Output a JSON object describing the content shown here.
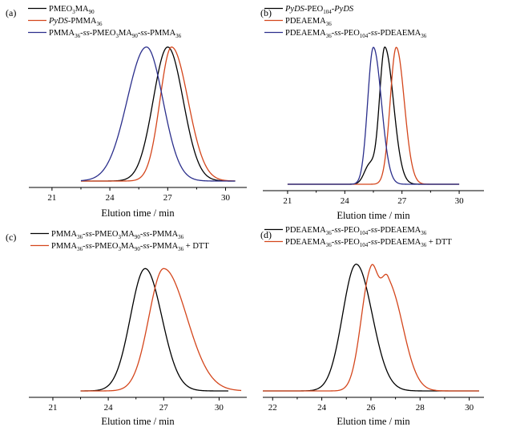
{
  "colors": {
    "black": "#000000",
    "red": "#d4461c",
    "blue": "#2b2f8c"
  },
  "chart_data": [
    {
      "panel": "(a)",
      "type": "line",
      "xlabel": "Elution time / min",
      "ylabel": "",
      "xticks": [
        21,
        24,
        27,
        30
      ],
      "xlim": [
        19.8,
        31.1
      ],
      "ylim": [
        0,
        1.1
      ],
      "legend": "top-left",
      "series": [
        {
          "name_parts": [
            [
              "PMEO",
              "n"
            ],
            [
              "3",
              "sub"
            ],
            [
              "MA",
              "n"
            ],
            [
              "90",
              "sub"
            ]
          ],
          "color": "black",
          "shape": "gauss",
          "peak": 27.0,
          "height": 1.0,
          "sigma_l": 0.75,
          "sigma_r": 0.8,
          "x_range": [
            22.5,
            30.5
          ],
          "baseline": 0.0
        },
        {
          "name_parts": [
            [
              "PyDS",
              "i"
            ],
            [
              "-PMMA",
              "n"
            ],
            [
              "36",
              "sub"
            ]
          ],
          "color": "red",
          "shape": "gauss",
          "peak": 27.2,
          "height": 1.0,
          "sigma_l": 0.6,
          "sigma_r": 0.85,
          "x_range": [
            22.5,
            30.5
          ],
          "baseline": 0.0
        },
        {
          "name_parts": [
            [
              "PMMA",
              "n"
            ],
            [
              "36",
              "sub"
            ],
            [
              "-",
              "n"
            ],
            [
              "ss",
              "i"
            ],
            [
              "-PMEO",
              "n"
            ],
            [
              "3",
              "sub"
            ],
            [
              "MA",
              "n"
            ],
            [
              "90",
              "sub"
            ],
            [
              "-",
              "n"
            ],
            [
              "ss",
              "i"
            ],
            [
              "-PMMA",
              "n"
            ],
            [
              "36",
              "sub"
            ]
          ],
          "color": "blue",
          "shape": "gauss",
          "peak": 25.9,
          "height": 1.0,
          "sigma_l": 1.0,
          "sigma_r": 0.85,
          "x_range": [
            22.5,
            30.5
          ],
          "baseline": 0.0
        }
      ]
    },
    {
      "panel": "(b)",
      "type": "line",
      "xlabel": "Elution time / min",
      "ylabel": "",
      "xticks": [
        21,
        24,
        27,
        30
      ],
      "xlim": [
        19.7,
        31.3
      ],
      "ylim": [
        0,
        1.1
      ],
      "legend": "top-left",
      "series": [
        {
          "name_parts": [
            [
              "PyDS",
              "i"
            ],
            [
              "-PEO",
              "n"
            ],
            [
              "104",
              "sub"
            ],
            [
              "-",
              "n"
            ],
            [
              "PyDS",
              "i"
            ]
          ],
          "color": "black",
          "shape": "gauss",
          "peak": 26.1,
          "height": 1.0,
          "sigma_l": 0.28,
          "sigma_r": 0.45,
          "shoulder": [
            25.3,
            0.14,
            0.28
          ],
          "x_range": [
            21.0,
            30.0
          ],
          "baseline": 0.0
        },
        {
          "name_parts": [
            [
              "PDEAEMA",
              "n"
            ],
            [
              "36",
              "sub"
            ]
          ],
          "color": "red",
          "shape": "gauss",
          "peak": 26.7,
          "height": 1.0,
          "sigma_l": 0.32,
          "sigma_r": 0.42,
          "x_range": [
            21.0,
            30.0
          ],
          "baseline": 0.0
        },
        {
          "name_parts": [
            [
              "PDEAEMA",
              "n"
            ],
            [
              "36",
              "sub"
            ],
            [
              "-",
              "n"
            ],
            [
              "ss",
              "i"
            ],
            [
              "-PEO",
              "n"
            ],
            [
              "104",
              "sub"
            ],
            [
              "-",
              "n"
            ],
            [
              "ss",
              "i"
            ],
            [
              "-PDEAEMA",
              "n"
            ],
            [
              "36",
              "sub"
            ]
          ],
          "color": "blue",
          "shape": "gauss",
          "peak": 25.5,
          "height": 1.0,
          "sigma_l": 0.3,
          "sigma_r": 0.42,
          "x_range": [
            21.0,
            30.0
          ],
          "baseline": 0.0
        }
      ]
    },
    {
      "panel": "(c)",
      "type": "line",
      "xlabel": "Elution time / min",
      "ylabel": "",
      "xticks": [
        21,
        24,
        27,
        30
      ],
      "xlim": [
        19.7,
        31.5
      ],
      "ylim": [
        0,
        1.1
      ],
      "legend": "top-left",
      "series": [
        {
          "name_parts": [
            [
              "PMMA",
              "n"
            ],
            [
              "36",
              "sub"
            ],
            [
              "-",
              "n"
            ],
            [
              "ss",
              "i"
            ],
            [
              "-PMEO",
              "n"
            ],
            [
              "3",
              "sub"
            ],
            [
              "MA",
              "n"
            ],
            [
              "90",
              "sub"
            ],
            [
              "-",
              "n"
            ],
            [
              "ss",
              "i"
            ],
            [
              "-PMMA",
              "n"
            ],
            [
              "36",
              "sub"
            ]
          ],
          "color": "black",
          "shape": "gauss",
          "peak": 26.0,
          "height": 1.0,
          "sigma_l": 0.8,
          "sigma_r": 0.9,
          "x_range": [
            22.5,
            30.5
          ],
          "baseline": 0.0
        },
        {
          "name_parts": [
            [
              "PMMA",
              "n"
            ],
            [
              "36",
              "sub"
            ],
            [
              "-",
              "n"
            ],
            [
              "ss",
              "i"
            ],
            [
              "-PMEO",
              "n"
            ],
            [
              "3",
              "sub"
            ],
            [
              "MA",
              "n"
            ],
            [
              "90",
              "sub"
            ],
            [
              "-",
              "n"
            ],
            [
              "ss",
              "i"
            ],
            [
              "-PMMA",
              "n"
            ],
            [
              "36",
              "sub"
            ],
            [
              " + DTT",
              "n"
            ]
          ],
          "color": "red",
          "shape": "gauss",
          "peak": 27.0,
          "height": 1.0,
          "sigma_l": 0.8,
          "sigma_r": 1.25,
          "x_range": [
            22.5,
            31.2
          ],
          "baseline": 0.0
        }
      ]
    },
    {
      "panel": "(d)",
      "type": "line",
      "xlabel": "Elution time / min",
      "ylabel": "",
      "xticks": [
        22,
        24,
        26,
        28,
        30
      ],
      "xlim": [
        21.6,
        30.6
      ],
      "ylim": [
        0,
        1.1
      ],
      "legend": "top-left",
      "series": [
        {
          "name_parts": [
            [
              "PDEAEMA",
              "n"
            ],
            [
              "36",
              "sub"
            ],
            [
              "-",
              "n"
            ],
            [
              "ss",
              "i"
            ],
            [
              "-PEO",
              "n"
            ],
            [
              "104",
              "sub"
            ],
            [
              "-",
              "n"
            ],
            [
              "ss",
              "i"
            ],
            [
              "-PDEAEMA",
              "n"
            ],
            [
              "36",
              "sub"
            ]
          ],
          "color": "black",
          "shape": "gauss",
          "peak": 25.4,
          "height": 1.0,
          "sigma_l": 0.55,
          "sigma_r": 0.65,
          "x_range": [
            21.6,
            30.4
          ],
          "baseline": 0.0
        },
        {
          "name_parts": [
            [
              "PDEAEMA",
              "n"
            ],
            [
              "36",
              "sub"
            ],
            [
              "-",
              "n"
            ],
            [
              "ss",
              "i"
            ],
            [
              "-PEO",
              "n"
            ],
            [
              "104",
              "sub"
            ],
            [
              "-",
              "n"
            ],
            [
              "ss",
              "i"
            ],
            [
              "-PDEAEMA",
              "n"
            ],
            [
              "36",
              "sub"
            ],
            [
              " + DTT",
              "n"
            ]
          ],
          "color": "red",
          "shape": "double",
          "peaks": [
            [
              26.0,
              0.93,
              0.4,
              0.3
            ],
            [
              26.7,
              0.84,
              0.3,
              0.6
            ]
          ],
          "x_range": [
            21.6,
            30.4
          ],
          "baseline": 0.0
        }
      ]
    }
  ]
}
